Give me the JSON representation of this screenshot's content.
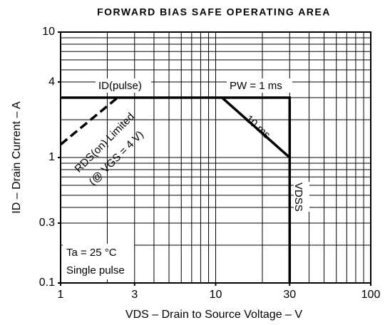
{
  "chart_data": {
    "type": "line",
    "title": "FORWARD BIAS SAFE OPERATING AREA",
    "x_label": "VDS – Drain to Source Voltage – V",
    "y_label": "ID – Drain Current – A",
    "log_x": true,
    "log_y": true,
    "xlim": [
      1,
      100
    ],
    "ylim": [
      0.1,
      10
    ],
    "xticks": [
      1,
      3,
      10,
      30,
      100
    ],
    "yticks": [
      0.1,
      0.3,
      1,
      4,
      10
    ],
    "xgrid": [
      1,
      2,
      3,
      4,
      5,
      6,
      7,
      8,
      9,
      10,
      20,
      30,
      40,
      50,
      60,
      70,
      80,
      90,
      100
    ],
    "ygrid": [
      0.1,
      0.2,
      0.3,
      0.4,
      0.5,
      0.6,
      0.7,
      0.8,
      0.9,
      1,
      2,
      3,
      4,
      5,
      6,
      7,
      8,
      9,
      10
    ],
    "color": "#000000",
    "lines": [
      {
        "style": "solid",
        "x": [
          1,
          30,
          30
        ],
        "y": [
          3,
          3,
          0.1
        ]
      },
      {
        "style": "solid",
        "x": [
          11,
          30
        ],
        "y": [
          3,
          1
        ]
      },
      {
        "style": "dashed",
        "x": [
          1,
          2.33
        ],
        "y": [
          1.27,
          3
        ]
      }
    ],
    "annotations": [
      "ID(pulse)",
      "PW = 1 ms",
      "10 ms",
      "RDS(on) Limited",
      "(@ VGS = 4 V)",
      "VDSS",
      "Ta = 25 °C",
      "Single pulse"
    ]
  }
}
